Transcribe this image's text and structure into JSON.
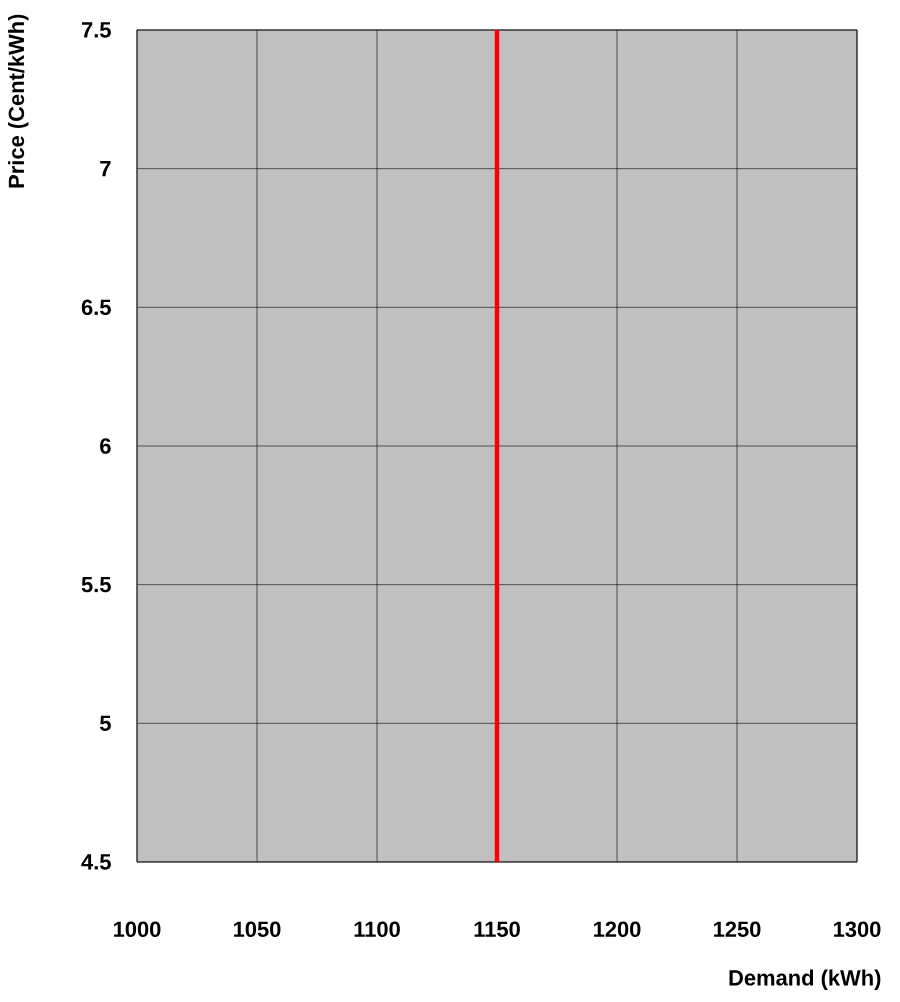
{
  "chart_data": {
    "type": "line",
    "xlabel": "Demand (kWh)",
    "ylabel": "Price (Cent/kWh)",
    "x": [
      1150,
      1150
    ],
    "series": [
      {
        "color": "#ff0000",
        "values": [
          4.5,
          7.5
        ]
      }
    ],
    "xlim": [
      1000,
      1300
    ],
    "ylim": [
      4.5,
      7.5
    ],
    "xticks": [
      1000,
      1050,
      1100,
      1150,
      1200,
      1250,
      1300
    ],
    "yticks": [
      4.5,
      5,
      5.5,
      6,
      6.5,
      7,
      7.5
    ],
    "grid": true
  }
}
